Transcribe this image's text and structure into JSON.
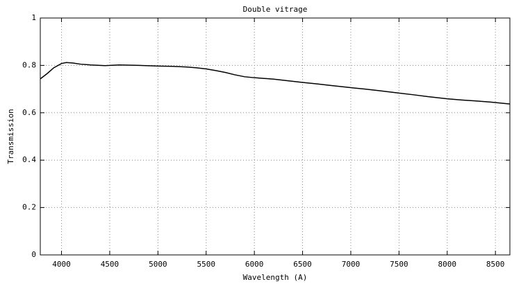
{
  "chart_data": {
    "type": "line",
    "title": "Double vitrage",
    "x_label": "Wavelength (A)",
    "y_label": "Transmission",
    "x": [
      3780,
      3850,
      3920,
      4000,
      4050,
      4120,
      4200,
      4300,
      4450,
      4600,
      4800,
      5000,
      5150,
      5300,
      5400,
      5500,
      5600,
      5700,
      5800,
      5900,
      6000,
      6100,
      6200,
      6350,
      6500,
      6650,
      6800,
      7000,
      7150,
      7300,
      7500,
      7650,
      7800,
      8000,
      8150,
      8300,
      8450,
      8650
    ],
    "series": [
      {
        "name": "Transmission",
        "color": "#000000",
        "values": [
          0.743,
          0.765,
          0.79,
          0.808,
          0.812,
          0.81,
          0.805,
          0.802,
          0.799,
          0.802,
          0.8,
          0.797,
          0.796,
          0.793,
          0.79,
          0.785,
          0.778,
          0.77,
          0.76,
          0.752,
          0.748,
          0.745,
          0.742,
          0.735,
          0.728,
          0.722,
          0.715,
          0.706,
          0.7,
          0.693,
          0.683,
          0.676,
          0.668,
          0.659,
          0.654,
          0.65,
          0.645,
          0.637
        ]
      }
    ],
    "xlim": [
      3780,
      8650
    ],
    "xticks": [
      4000,
      4500,
      5000,
      5500,
      6000,
      6500,
      7000,
      7500,
      8000,
      8500
    ],
    "ylim": [
      0,
      1
    ],
    "yticks": [
      0,
      0.2,
      0.4,
      0.6,
      0.8,
      1
    ],
    "grid": true
  }
}
